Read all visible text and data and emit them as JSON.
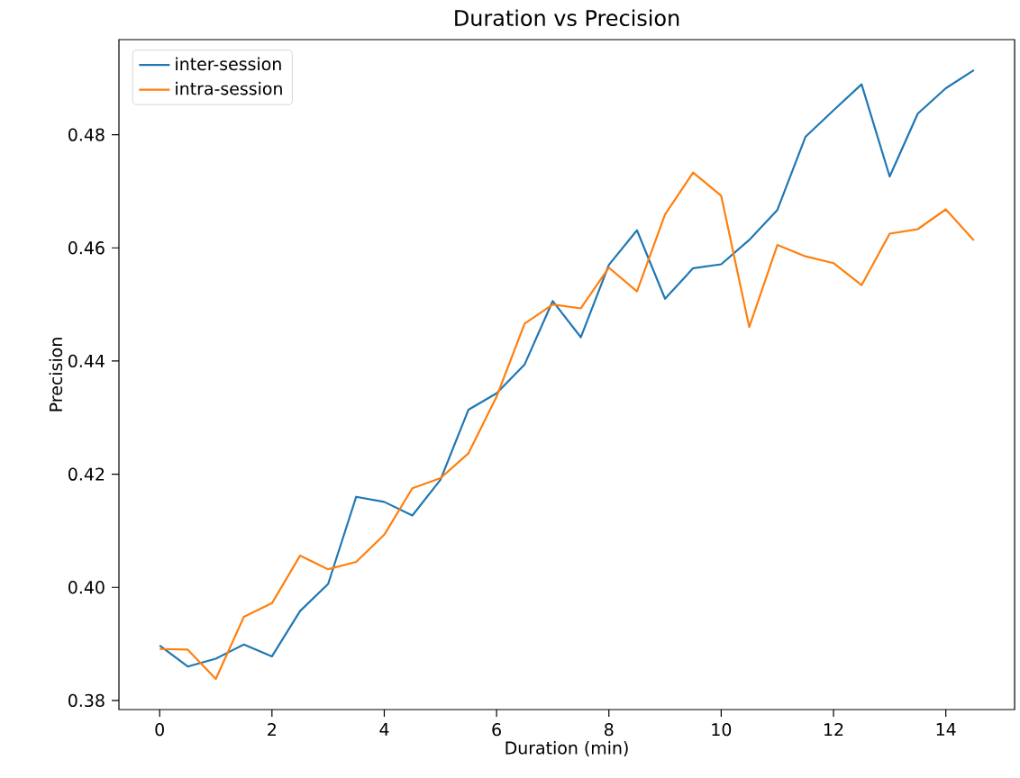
{
  "chart_data": {
    "type": "line",
    "title": "Duration vs Precision",
    "xlabel": "Duration (min)",
    "ylabel": "Precision",
    "x": [
      0,
      0.5,
      1,
      1.5,
      2,
      2.5,
      3,
      3.5,
      4,
      4.5,
      5,
      5.5,
      6,
      6.5,
      7,
      7.5,
      8,
      8.5,
      9,
      9.5,
      10,
      10.5,
      11,
      11.5,
      12,
      12.5,
      13,
      13.5,
      14,
      14.5
    ],
    "series": [
      {
        "name": "inter-session",
        "color": "#1f77b4",
        "values": [
          0.3897,
          0.386,
          0.3874,
          0.3899,
          0.3878,
          0.3958,
          0.4006,
          0.416,
          0.4151,
          0.4127,
          0.419,
          0.4314,
          0.4343,
          0.4394,
          0.4506,
          0.4442,
          0.457,
          0.4631,
          0.451,
          0.4564,
          0.4571,
          0.4614,
          0.4667,
          0.4796,
          0.4843,
          0.4889,
          0.4726,
          0.4837,
          0.4882,
          0.4914
        ]
      },
      {
        "name": "intra-session",
        "color": "#ff7f0e",
        "values": [
          0.3891,
          0.389,
          0.3838,
          0.3948,
          0.3972,
          0.4056,
          0.4032,
          0.4045,
          0.4093,
          0.4175,
          0.4193,
          0.4237,
          0.4337,
          0.4466,
          0.45,
          0.4493,
          0.4565,
          0.4523,
          0.4659,
          0.4733,
          0.4692,
          0.446,
          0.4605,
          0.4585,
          0.4573,
          0.4534,
          0.4625,
          0.4633,
          0.4668,
          0.4613
        ]
      }
    ],
    "xlim": [
      -0.725,
      15.225
    ],
    "ylim": [
      0.3784,
      0.4968
    ],
    "xticks": [
      0,
      2,
      4,
      6,
      8,
      10,
      12,
      14
    ],
    "yticks": [
      {
        "value": 0.38,
        "label": "0.38"
      },
      {
        "value": 0.4,
        "label": "0.40"
      },
      {
        "value": 0.42,
        "label": "0.42"
      },
      {
        "value": 0.44,
        "label": "0.44"
      },
      {
        "value": 0.46,
        "label": "0.46"
      },
      {
        "value": 0.48,
        "label": "0.48"
      }
    ],
    "grid": false,
    "legend": "top left",
    "marker": "none",
    "line_style": "solid"
  }
}
